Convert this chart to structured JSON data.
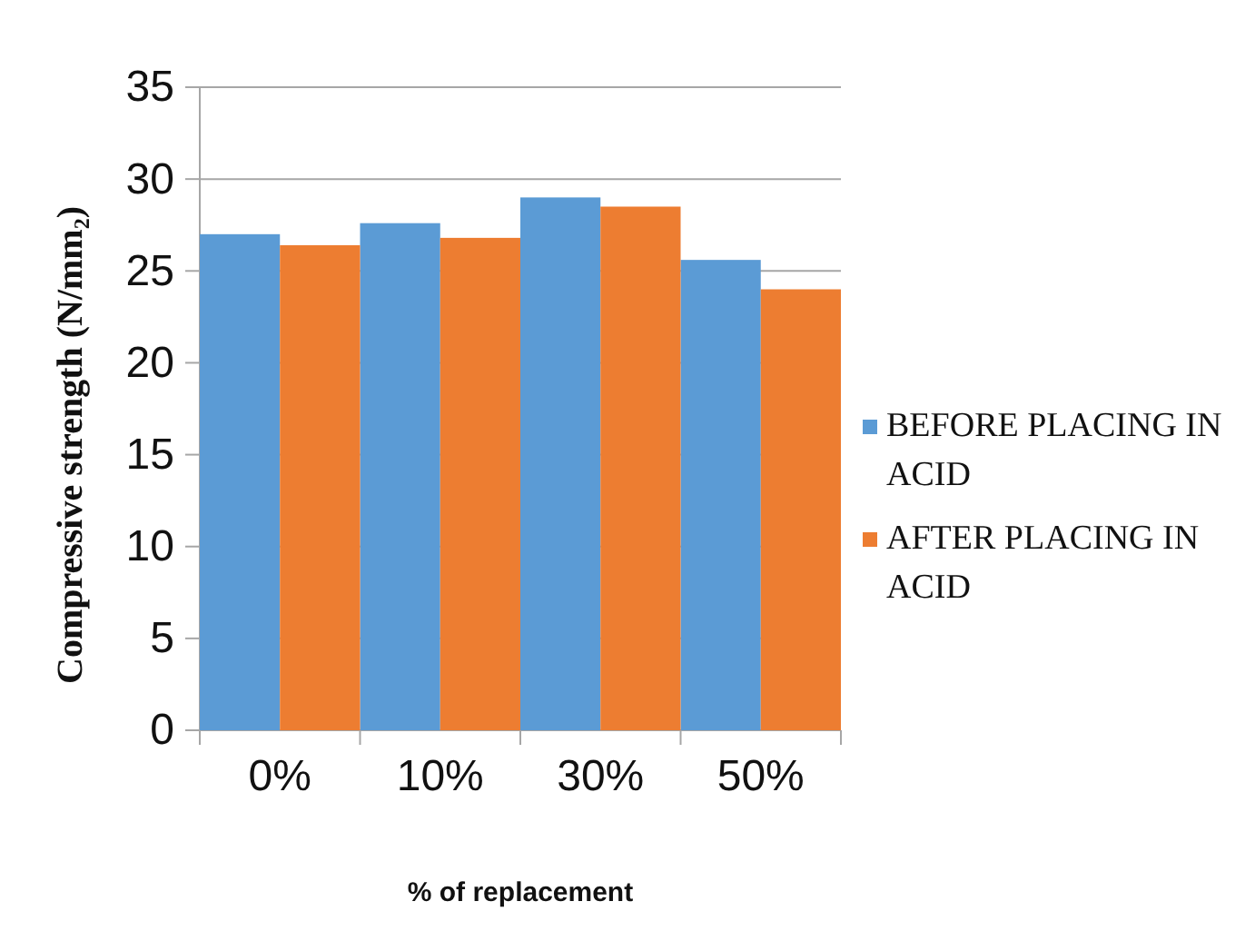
{
  "chart_data": {
    "type": "bar",
    "xlabel": "% of replacement",
    "ylabel": "Compressive strength (N/mm₂)",
    "categories": [
      "0%",
      "10%",
      "30%",
      "50%"
    ],
    "series": [
      {
        "name": "BEFORE PLACING IN ACID",
        "color": "#5b9bd5",
        "values": [
          27.0,
          27.6,
          29.0,
          25.6
        ]
      },
      {
        "name": "AFTER PLACING IN ACID",
        "color": "#ed7d31",
        "values": [
          26.4,
          26.8,
          28.5,
          24.0
        ]
      }
    ],
    "ylim": [
      0,
      35
    ],
    "yticks": [
      0,
      5,
      10,
      15,
      20,
      25,
      30,
      35
    ],
    "grid": "y",
    "legend": "right"
  }
}
